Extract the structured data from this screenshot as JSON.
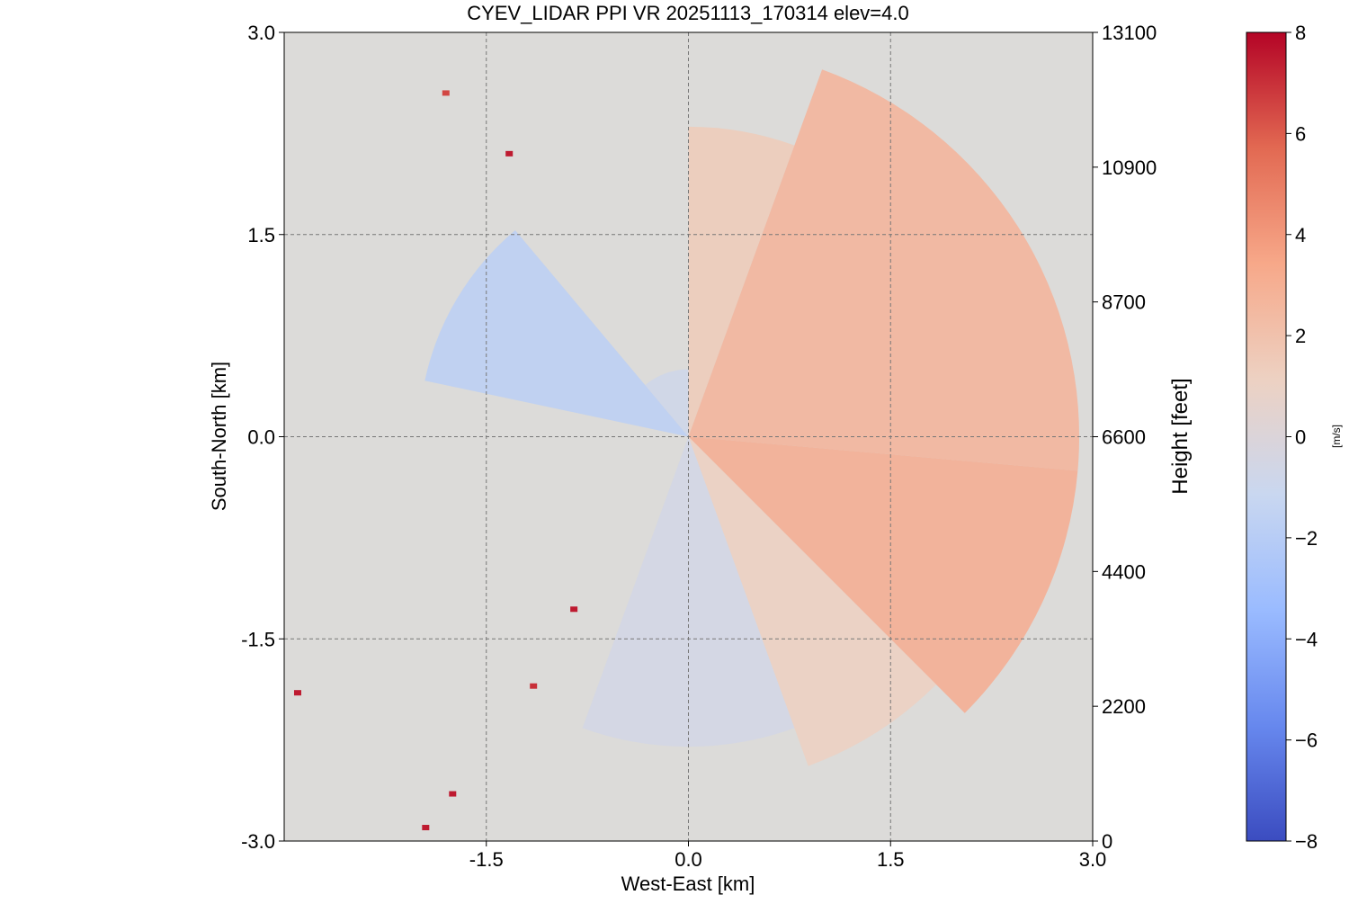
{
  "chart_data": {
    "type": "heatmap",
    "title": "CYEV_LIDAR PPI VR  20251113_170314 elev=4.0",
    "xlabel": "West-East [km]",
    "ylabel": "South-North [km]",
    "y2label": "Height [feet]",
    "xlim": [
      -3.0,
      3.0
    ],
    "ylim": [
      -3.0,
      3.0
    ],
    "x_ticks": [
      -1.5,
      0.0,
      1.5,
      3.0
    ],
    "x_tick_labels": [
      "-1.5",
      "0.0",
      "1.5",
      "3.0"
    ],
    "y_ticks": [
      -3.0,
      -1.5,
      0.0,
      1.5,
      3.0
    ],
    "y_tick_labels": [
      "-3.0",
      "-1.5",
      "0.0",
      "1.5",
      "3.0"
    ],
    "y2_tick_labels": [
      "0",
      "2200",
      "4400",
      "6600",
      "8700",
      "10900",
      "13100"
    ],
    "grid": true,
    "background_color": "#dcdbd9",
    "colorbar": {
      "label": "[m/s]",
      "range": [
        -8,
        8
      ],
      "ticks": [
        -8,
        -6,
        -4,
        -2,
        0,
        2,
        4,
        6,
        8
      ],
      "tick_labels": [
        "−8",
        "−6",
        "−4",
        "−2",
        "0",
        "2",
        "4",
        "6",
        "8"
      ],
      "colormap": "coolwarm",
      "color_stops": [
        "#3b4cc0",
        "#6788ee",
        "#9abbff",
        "#c9d7f0",
        "#edd1c2",
        "#f7a889",
        "#e26952",
        "#b40426"
      ]
    },
    "velocity_field": {
      "description_units": "radial velocity in m/s by azimuth (deg clockwise from north) and range (km)",
      "sectors": [
        {
          "az_start": 282,
          "az_end": 320,
          "range_max": 2.0,
          "value": -1.8
        },
        {
          "az_start": 320,
          "az_end": 360,
          "range_max": 0.5,
          "value": -0.8
        },
        {
          "az_start": 0,
          "az_end": 20,
          "range_max": 2.3,
          "value": 1.5
        },
        {
          "az_start": 20,
          "az_end": 95,
          "range_max": 2.9,
          "value": 2.8
        },
        {
          "az_start": 95,
          "az_end": 135,
          "range_max": 2.9,
          "value": 3.2
        },
        {
          "az_start": 135,
          "az_end": 160,
          "range_max": 2.6,
          "value": 1.2
        },
        {
          "az_start": 160,
          "az_end": 200,
          "range_max": 2.3,
          "value": -0.6
        }
      ],
      "scattered_points": [
        {
          "x": -2.9,
          "y": -1.9,
          "value": 7.5
        },
        {
          "x": -1.75,
          "y": -2.65,
          "value": 7.5
        },
        {
          "x": -1.95,
          "y": -2.9,
          "value": 7.5
        },
        {
          "x": -1.33,
          "y": 2.1,
          "value": 7.5
        },
        {
          "x": -0.85,
          "y": -1.28,
          "value": 7.5
        },
        {
          "x": -1.15,
          "y": -1.85,
          "value": 7.0
        },
        {
          "x": -1.8,
          "y": 2.55,
          "value": 6.5
        }
      ]
    }
  }
}
